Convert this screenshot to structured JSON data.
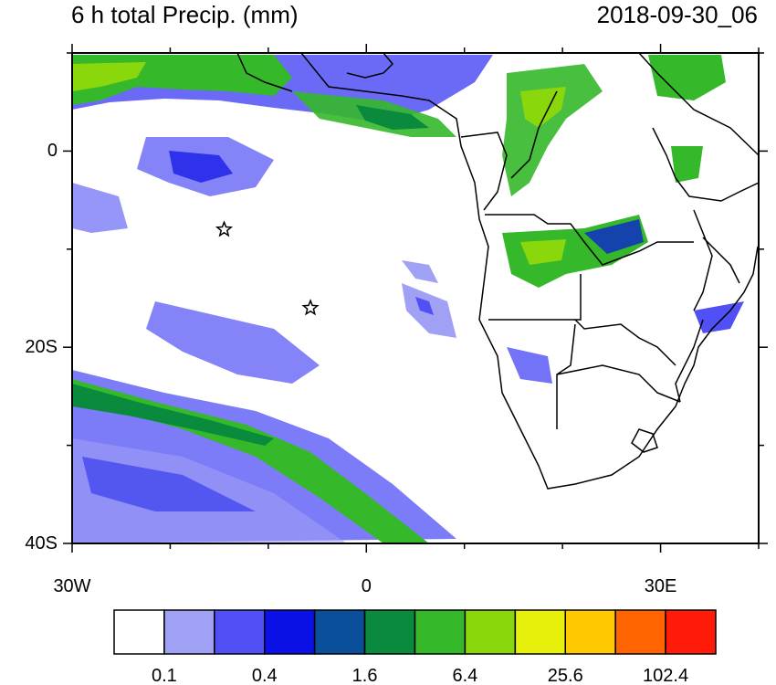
{
  "title_left": "6 h total Precip. (mm)",
  "title_right": "2018-09-30_06",
  "lat_ticks": [
    {
      "value": 0,
      "label": "0"
    },
    {
      "value": -20,
      "label": "20S"
    },
    {
      "value": -40,
      "label": "40S"
    }
  ],
  "lon_ticks": [
    {
      "value": -30,
      "label": "30W"
    },
    {
      "value": 0,
      "label": "0"
    },
    {
      "value": 30,
      "label": "30E"
    }
  ],
  "extent": {
    "lon": [
      -30,
      40
    ],
    "lat": [
      -40,
      10
    ]
  },
  "markers": [
    {
      "type": "star",
      "lon": -14.5,
      "lat": -8
    },
    {
      "type": "star",
      "lon": -5.7,
      "lat": -16
    }
  ],
  "colorbar": {
    "colors": [
      "#ffffff",
      "#a0a0f5",
      "#5050f5",
      "#0a10e6",
      "#0a4f9a",
      "#0a8a3c",
      "#35b82a",
      "#8ad80c",
      "#e6f00a",
      "#ffc800",
      "#ff6400",
      "#ff1a0a"
    ],
    "labels": [
      "0.1",
      "0.4",
      "1.6",
      "6.4",
      "25.6",
      "102.4"
    ]
  },
  "colors": {
    "land_outline": "#000000",
    "frame": "#000000"
  }
}
